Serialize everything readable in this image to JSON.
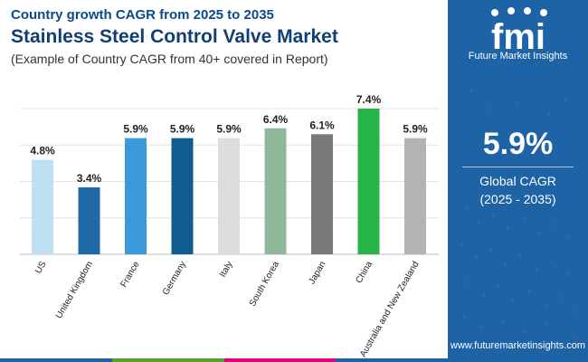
{
  "header": {
    "subtitle": "Country growth CAGR from 2025 to 2035",
    "title": "Stainless Steel Control Valve Market",
    "description": "(Example of Country CAGR from 40+ covered in Report)"
  },
  "chart_data": {
    "type": "bar",
    "categories": [
      "US",
      "United Kingdom",
      "France",
      "Germany",
      "Italy",
      "South Korea",
      "Japan",
      "China",
      "Australia and New Zealand"
    ],
    "values": [
      4.8,
      3.4,
      5.9,
      5.9,
      5.9,
      6.4,
      6.1,
      7.4,
      5.9
    ],
    "value_labels": [
      "4.8%",
      "3.4%",
      "5.9%",
      "5.9%",
      "5.9%",
      "6.4%",
      "6.1%",
      "7.4%",
      "5.9%"
    ],
    "colors": [
      "#bfe0f3",
      "#1f6aa6",
      "#3a9ad9",
      "#0e5d8e",
      "#dcdcdc",
      "#8fb89a",
      "#7a7a7a",
      "#26b34a",
      "#b3b3b3"
    ],
    "ylim": [
      0,
      7.4
    ],
    "gridline_values": [
      0,
      1.85,
      3.7,
      5.55,
      7.4
    ],
    "title": "Stainless Steel Control Valve Market",
    "xlabel": "",
    "ylabel": "",
    "grid": true
  },
  "summary": {
    "value": "5.9%",
    "label_line1": "Global CAGR",
    "label_line2": "(2025 - 2035)"
  },
  "brand": {
    "logo_mark": "fmi",
    "name": "Future Market Insights",
    "website": "www.futuremarketinsights.com"
  },
  "colors": {
    "panel": "#1e63a6",
    "bottom_bar": [
      "#1e63a6",
      "#5aa02c",
      "#e5007e",
      "#1e63a6"
    ]
  }
}
